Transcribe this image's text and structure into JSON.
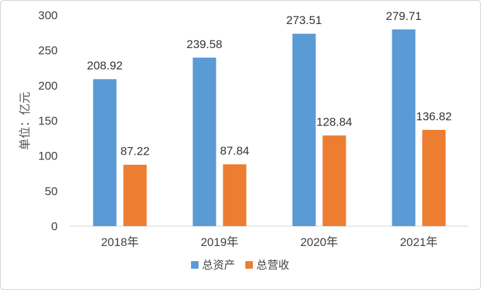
{
  "chart_data": {
    "type": "bar",
    "categories": [
      "2018年",
      "2019年",
      "2020年",
      "2021年"
    ],
    "series": [
      {
        "name": "总资产",
        "color": "#5b9bd5",
        "values": [
          208.92,
          239.58,
          273.51,
          279.71
        ]
      },
      {
        "name": "总营收",
        "color": "#ed7d31",
        "values": [
          87.22,
          87.84,
          128.84,
          136.82
        ]
      }
    ],
    "data_labels": [
      [
        "208.92",
        "239.58",
        "273.51",
        "279.71"
      ],
      [
        "87.22",
        "87.84",
        "128.84",
        "136.82"
      ]
    ],
    "ylabel": "单位：亿元",
    "ylim": [
      0,
      300
    ],
    "yticks": [
      "0",
      "50",
      "100",
      "150",
      "200",
      "250",
      "300"
    ],
    "grid": false,
    "legend_position": "bottom"
  }
}
